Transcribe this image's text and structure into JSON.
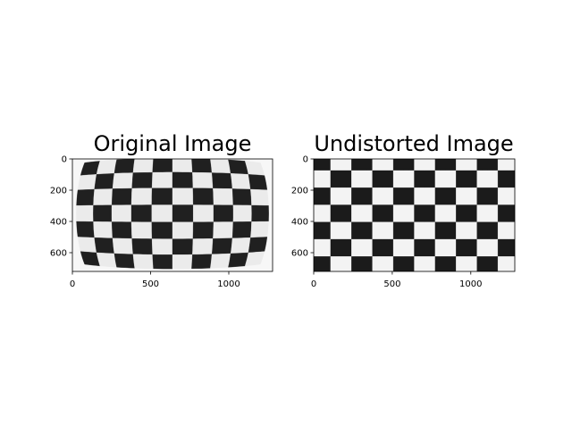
{
  "panels": [
    {
      "title": "Original Image",
      "xticks": [
        0,
        500,
        1000
      ],
      "yticks": [
        0,
        200,
        400,
        600
      ],
      "xlim": [
        0,
        1280
      ],
      "ylim": [
        720,
        0
      ],
      "content": "checkerboard photo with lens distortion (curved edges)",
      "distorted": true
    },
    {
      "title": "Undistorted Image",
      "xticks": [
        0,
        500,
        1000
      ],
      "yticks": [
        0,
        200,
        400,
        600
      ],
      "xlim": [
        0,
        1280
      ],
      "ylim": [
        720,
        0
      ],
      "content": "checkerboard photo corrected for lens distortion",
      "distorted": false
    }
  ],
  "colors": {
    "dark_square": "#1b1b1b",
    "light_square": "#f3f3f3",
    "axis": "#000000"
  }
}
